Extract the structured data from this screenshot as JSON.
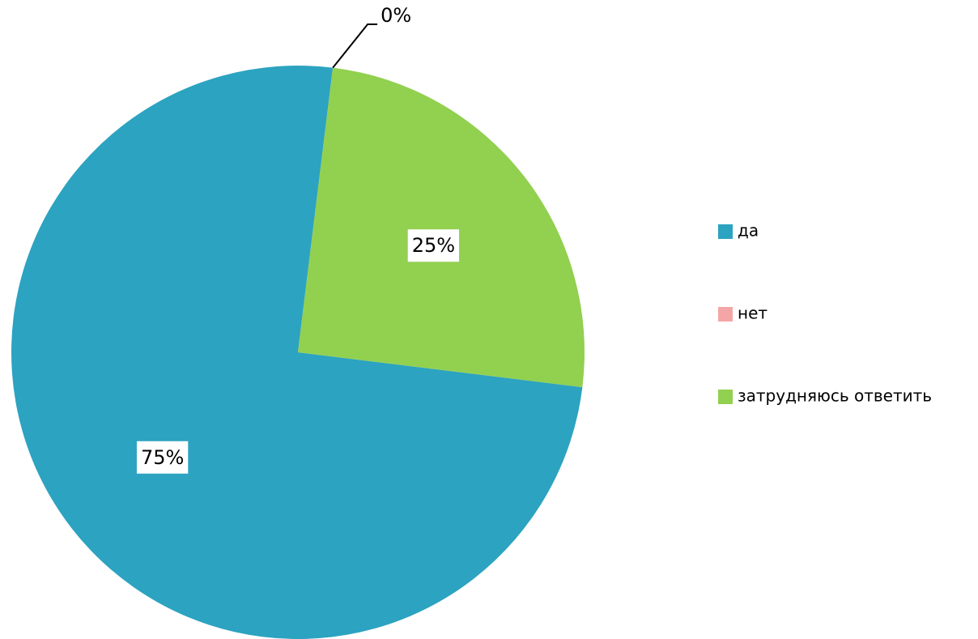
{
  "chart_data": {
    "type": "pie",
    "categories": [
      "да",
      "нет",
      "затрудняюсь ответить"
    ],
    "values": [
      75,
      0,
      25
    ],
    "value_labels": [
      "75%",
      "0%",
      "25%"
    ],
    "colors": [
      "#2ca3c0",
      "#f4a6a6",
      "#92d050"
    ],
    "legend": "right"
  }
}
